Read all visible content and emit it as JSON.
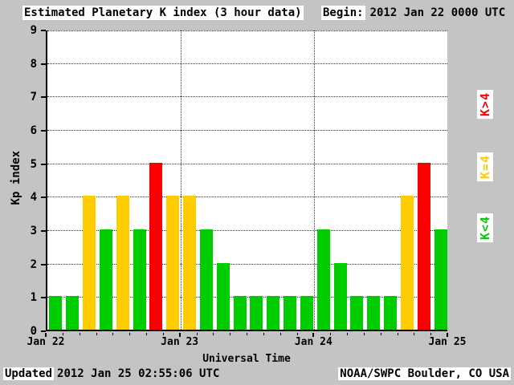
{
  "header": {
    "title": "Estimated Planetary K index (3 hour data)",
    "begin_label": "Begin:",
    "begin_value": "2012 Jan 22 0000 UTC"
  },
  "footer": {
    "updated_label": "Updated",
    "updated_value": "2012 Jan 25 02:55:06 UTC",
    "credit": "NOAA/SWPC Boulder, CO USA"
  },
  "legend": [
    {
      "label": "K>4",
      "color": "#fb0000"
    },
    {
      "label": "K=4",
      "color": "#ffcc00"
    },
    {
      "label": "K<4",
      "color": "#00cc00"
    }
  ],
  "chart_data": {
    "type": "bar",
    "title": "Estimated Planetary K index (3 hour data)",
    "xlabel": "Universal Time",
    "ylabel": "Kp index",
    "ylim": [
      0,
      9
    ],
    "yticks": [
      0,
      1,
      2,
      3,
      4,
      5,
      6,
      7,
      8,
      9
    ],
    "xticks": [
      "Jan 22",
      "Jan 23",
      "Jan 24",
      "Jan 25"
    ],
    "interval_hours": 3,
    "values": [
      1,
      1,
      4,
      3,
      4,
      3,
      5,
      4,
      4,
      3,
      2,
      1,
      1,
      1,
      1,
      1,
      3,
      2,
      1,
      1,
      1,
      4,
      5,
      3
    ],
    "colors": {
      "low": "#00cc00",
      "mid": "#ffcc00",
      "high": "#fb0000"
    },
    "color_rule": "low if K<4, mid if K=4, high if K>4",
    "grid": "dotted horizontal at each Kp integer, dotted vertical at day boundaries",
    "legend_position": "right, rotated"
  }
}
